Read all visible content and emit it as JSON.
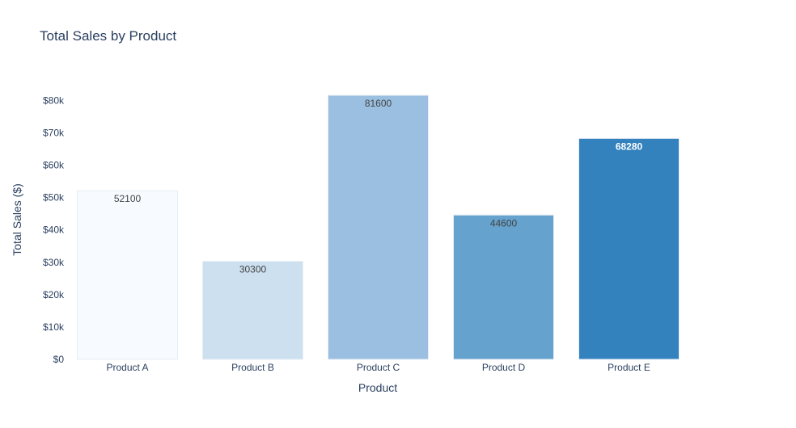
{
  "chart_data": {
    "type": "bar",
    "title": "Total Sales by Product",
    "xlabel": "Product",
    "ylabel": "Total Sales ($)",
    "categories": [
      "Product A",
      "Product B",
      "Product C",
      "Product D",
      "Product E"
    ],
    "values": [
      52100,
      30300,
      81600,
      44600,
      68280
    ],
    "value_labels": [
      "52100",
      "30300",
      "81600",
      "44600",
      "68280"
    ],
    "bar_colors": [
      "#f7fbff",
      "#cce0f0",
      "#9abfe0",
      "#65a2cd",
      "#3382be"
    ],
    "bar_label_colors": [
      "#444444",
      "#444444",
      "#444444",
      "#444444",
      "#ffffff"
    ],
    "ylim": [
      0,
      81600
    ],
    "yticks": [
      0,
      10000,
      20000,
      30000,
      40000,
      50000,
      60000,
      70000,
      80000
    ],
    "ytick_labels": [
      "$0",
      "$10k",
      "$20k",
      "$30k",
      "$40k",
      "$50k",
      "$60k",
      "$70k",
      "$80k"
    ],
    "grid": false,
    "legend": "none",
    "text_color": "#2a3f5f",
    "bar_outline_color": "#e8eef5"
  }
}
